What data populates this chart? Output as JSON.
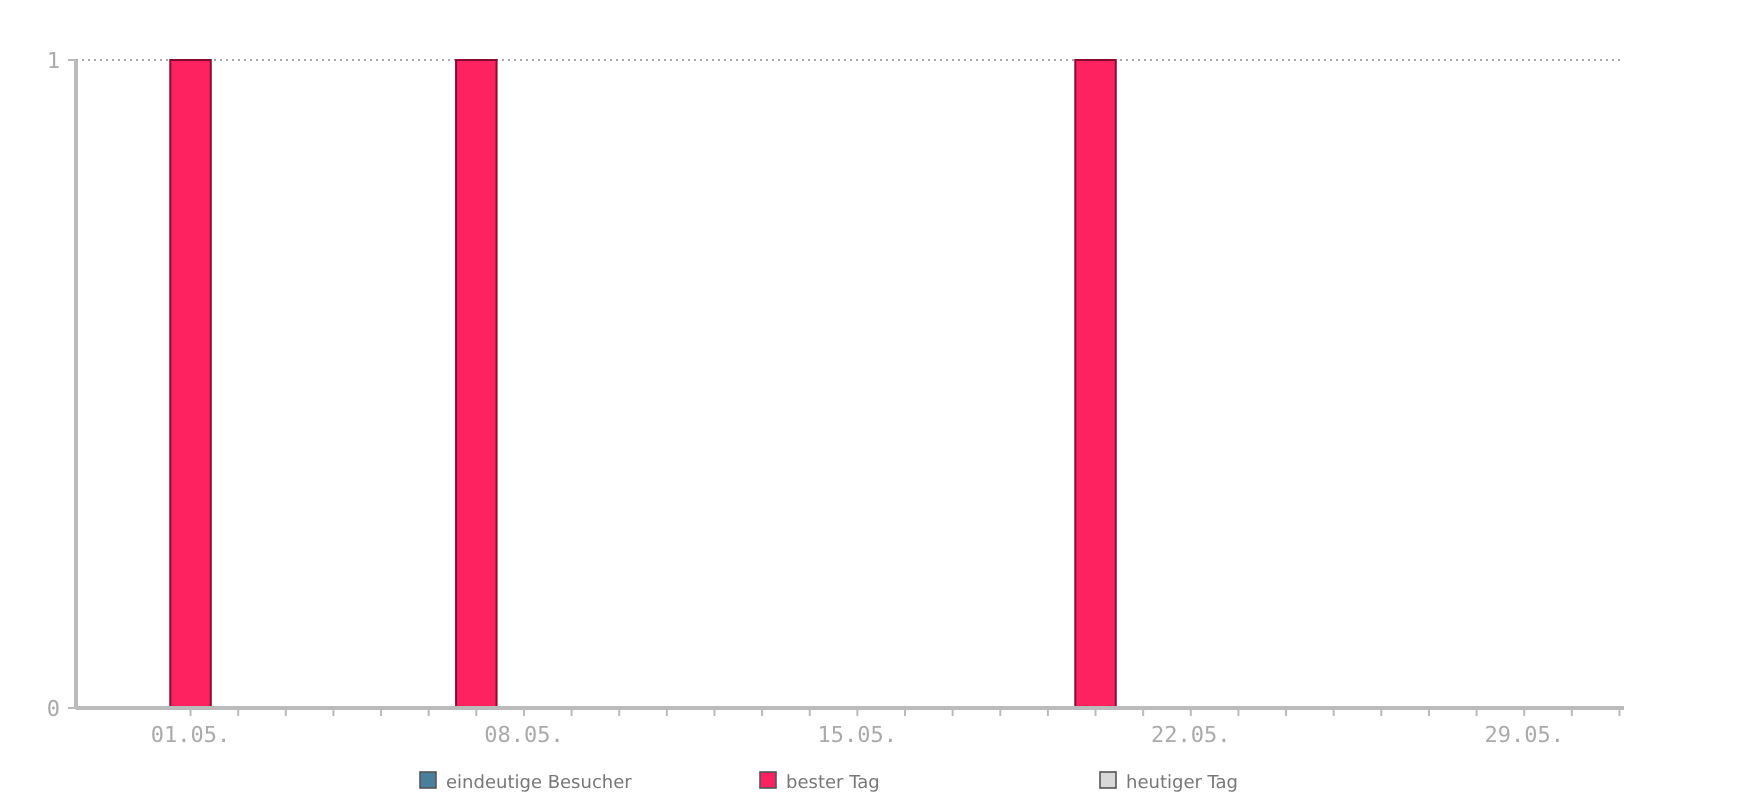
{
  "chart_data": {
    "type": "bar",
    "categories": [
      "01.05.",
      null,
      null,
      null,
      null,
      null,
      null,
      "08.05.",
      null,
      null,
      null,
      null,
      null,
      null,
      "15.05.",
      null,
      null,
      null,
      null,
      null,
      null,
      "22.05.",
      null,
      null,
      null,
      null,
      null,
      null,
      "29.05.",
      null,
      null
    ],
    "series": [
      {
        "name": "eindeutige Besucher",
        "color": "#4a7f9c",
        "values": [
          null,
          null,
          null,
          null,
          null,
          null,
          null,
          null,
          null,
          null,
          null,
          null,
          null,
          null,
          null,
          null,
          null,
          null,
          null,
          null,
          null,
          null,
          null,
          null,
          null,
          null,
          null,
          null,
          null,
          null,
          null
        ]
      },
      {
        "name": "bester Tag",
        "color": "#ff2261",
        "values": [
          1,
          null,
          null,
          null,
          null,
          null,
          1,
          null,
          null,
          null,
          null,
          null,
          null,
          null,
          null,
          null,
          null,
          null,
          null,
          1,
          null,
          null,
          null,
          null,
          null,
          null,
          null,
          null,
          null,
          null,
          null
        ]
      },
      {
        "name": "heutiger Tag",
        "color": "#d8d8d8",
        "values": [
          null,
          null,
          null,
          null,
          null,
          null,
          null,
          null,
          null,
          null,
          null,
          null,
          null,
          null,
          null,
          null,
          null,
          null,
          null,
          null,
          null,
          null,
          null,
          null,
          null,
          null,
          null,
          null,
          null,
          null,
          null
        ]
      }
    ],
    "ylim": [
      0,
      1
    ],
    "yticks": [
      0,
      1
    ],
    "ref_lines": [
      {
        "axis": "y",
        "value": 1,
        "color": "#aaaaaa",
        "line_style": "dotted"
      }
    ],
    "legend": "bottom"
  }
}
